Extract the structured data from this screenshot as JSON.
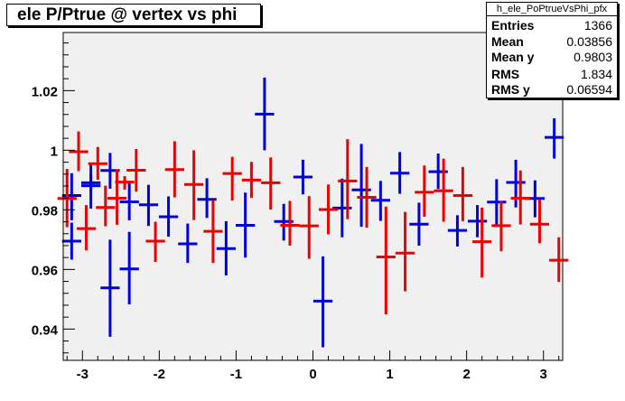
{
  "title": "ele P/Ptrue @ vertex vs phi",
  "stats": {
    "name": "h_ele_PoPtrueVsPhi_pfx",
    "rows": [
      {
        "key": "Entries",
        "value": "1366"
      },
      {
        "key": "Mean",
        "value": "0.03856"
      },
      {
        "key": "Mean y",
        "value": "0.9803"
      },
      {
        "key": "RMS",
        "value": "1.834"
      },
      {
        "key": "RMS y",
        "value": "0.06594"
      }
    ]
  },
  "colors": {
    "frame_bg": "#f0f0f0",
    "blue": "#0000dd",
    "red": "#ee0000",
    "axis": "#000000"
  },
  "chart_data": {
    "type": "scatter",
    "xlim": [
      -3.25,
      3.25
    ],
    "ylim": [
      0.9295,
      1.0395
    ],
    "xticks": [
      -3,
      -2,
      -1,
      0,
      1,
      2,
      3
    ],
    "xtick_labels": [
      "-3",
      "-2",
      "-1",
      "0",
      "1",
      "2",
      "3"
    ],
    "yticks": [
      0.94,
      0.96,
      0.98,
      1.0,
      1.02
    ],
    "ytick_labels": [
      "0.94",
      "0.96",
      "0.98",
      "1",
      "1.02"
    ],
    "xlabel": "",
    "ylabel": "",
    "grid": false,
    "series": [
      {
        "color": "#0000dd",
        "points": [
          {
            "x": -3.14,
            "y": 0.9848,
            "ylo": 0.9765,
            "yhi": 0.9923
          },
          {
            "x": -2.89,
            "y": 0.9881,
            "ylo": 0.9804,
            "yhi": 0.9951
          },
          {
            "x": -2.64,
            "y": 0.9932,
            "ylo": 0.9871,
            "yhi": 0.9991
          },
          {
            "x": -2.39,
            "y": 0.9602,
            "ylo": 0.9483,
            "yhi": 0.9726
          },
          {
            "x": -2.14,
            "y": 0.9817,
            "ylo": 0.9746,
            "yhi": 0.9884
          },
          {
            "x": -1.88,
            "y": 0.9777,
            "ylo": 0.971,
            "yhi": 0.9845
          },
          {
            "x": -1.63,
            "y": 0.9686,
            "ylo": 0.9622,
            "yhi": 0.9754
          },
          {
            "x": -1.38,
            "y": 0.9835,
            "ylo": 0.9773,
            "yhi": 0.9906
          },
          {
            "x": -1.13,
            "y": 0.967,
            "ylo": 0.958,
            "yhi": 0.9762
          },
          {
            "x": -0.88,
            "y": 0.9748,
            "ylo": 0.964,
            "yhi": 0.9858
          },
          {
            "x": -0.63,
            "y": 1.0121,
            "ylo": 1.0,
            "yhi": 1.0244
          },
          {
            "x": -0.38,
            "y": 0.9761,
            "ylo": 0.9697,
            "yhi": 0.982
          },
          {
            "x": -0.13,
            "y": 0.991,
            "ylo": 0.9852,
            "yhi": 0.9968
          },
          {
            "x": 0.13,
            "y": 0.9494,
            "ylo": 0.9339,
            "yhi": 0.9644
          },
          {
            "x": 0.38,
            "y": 0.9806,
            "ylo": 0.9708,
            "yhi": 0.9905
          },
          {
            "x": 0.63,
            "y": 0.9867,
            "ylo": 0.9743,
            "yhi": 1.0021
          },
          {
            "x": 0.88,
            "y": 0.9832,
            "ylo": 0.9763,
            "yhi": 0.9897
          },
          {
            "x": 1.13,
            "y": 0.9923,
            "ylo": 0.9854,
            "yhi": 0.9994
          },
          {
            "x": 1.38,
            "y": 0.9752,
            "ylo": 0.968,
            "yhi": 0.9824
          },
          {
            "x": 1.63,
            "y": 0.9928,
            "ylo": 0.987,
            "yhi": 0.9989
          },
          {
            "x": 1.88,
            "y": 0.9731,
            "ylo": 0.9677,
            "yhi": 0.9782
          },
          {
            "x": 2.14,
            "y": 0.9762,
            "ylo": 0.9708,
            "yhi": 0.9816
          },
          {
            "x": 2.39,
            "y": 0.9826,
            "ylo": 0.9749,
            "yhi": 0.9903
          },
          {
            "x": 2.64,
            "y": 0.9892,
            "ylo": 0.9808,
            "yhi": 0.9968
          },
          {
            "x": 2.89,
            "y": 0.9838,
            "ylo": 0.9775,
            "yhi": 0.9899
          },
          {
            "x": 3.14,
            "y": 1.0043,
            "ylo": 0.9972,
            "yhi": 1.0107
          },
          {
            "x": -3.14,
            "y": 0.9695,
            "ylo": 0.9633,
            "yhi": 0.9757
          },
          {
            "x": -2.89,
            "y": 0.9891,
            "ylo": 0.9868,
            "yhi": 0.9916
          },
          {
            "x": -2.64,
            "y": 0.9538,
            "ylo": 0.9374,
            "yhi": 0.97
          },
          {
            "x": -2.39,
            "y": 0.9827,
            "ylo": 0.9765,
            "yhi": 0.9897
          }
        ]
      },
      {
        "color": "#ee0000",
        "points": [
          {
            "x": -3.05,
            "y": 0.9995,
            "ylo": 0.993,
            "yhi": 1.0063
          },
          {
            "x": -2.8,
            "y": 0.9955,
            "ylo": 0.9901,
            "yhi": 1.0011
          },
          {
            "x": -2.55,
            "y": 0.9839,
            "ylo": 0.975,
            "yhi": 0.9936
          },
          {
            "x": -2.3,
            "y": 0.9933,
            "ylo": 0.9861,
            "yhi": 1.0004
          },
          {
            "x": -2.05,
            "y": 0.9695,
            "ylo": 0.9625,
            "yhi": 0.976
          },
          {
            "x": -1.8,
            "y": 0.9935,
            "ylo": 0.9842,
            "yhi": 1.003
          },
          {
            "x": -1.55,
            "y": 0.9885,
            "ylo": 0.9766,
            "yhi": 1.0
          },
          {
            "x": -1.3,
            "y": 0.9728,
            "ylo": 0.9622,
            "yhi": 0.9832
          },
          {
            "x": -1.05,
            "y": 0.9922,
            "ylo": 0.9831,
            "yhi": 0.9978
          },
          {
            "x": -0.8,
            "y": 0.99,
            "ylo": 0.984,
            "yhi": 0.9961
          },
          {
            "x": -0.55,
            "y": 0.9891,
            "ylo": 0.9801,
            "yhi": 0.9976
          },
          {
            "x": -0.3,
            "y": 0.9748,
            "ylo": 0.968,
            "yhi": 0.983
          },
          {
            "x": -0.05,
            "y": 0.9746,
            "ylo": 0.9636,
            "yhi": 0.9846
          },
          {
            "x": 0.2,
            "y": 0.9801,
            "ylo": 0.9718,
            "yhi": 0.9885
          },
          {
            "x": 0.45,
            "y": 0.9897,
            "ylo": 0.9769,
            "yhi": 1.0037
          },
          {
            "x": 0.7,
            "y": 0.9842,
            "ylo": 0.974,
            "yhi": 0.9944
          },
          {
            "x": 0.95,
            "y": 0.9642,
            "ylo": 0.9449,
            "yhi": 0.9811
          },
          {
            "x": 1.2,
            "y": 0.9655,
            "ylo": 0.9527,
            "yhi": 0.9793
          },
          {
            "x": 1.45,
            "y": 0.9859,
            "ylo": 0.9777,
            "yhi": 0.9949
          },
          {
            "x": 1.7,
            "y": 0.9864,
            "ylo": 0.976,
            "yhi": 0.9972
          },
          {
            "x": 1.95,
            "y": 0.9848,
            "ylo": 0.9762,
            "yhi": 0.9944
          },
          {
            "x": 2.2,
            "y": 0.9693,
            "ylo": 0.9573,
            "yhi": 0.9807
          },
          {
            "x": 2.45,
            "y": 0.9747,
            "ylo": 0.9661,
            "yhi": 0.983
          },
          {
            "x": 2.7,
            "y": 0.9839,
            "ylo": 0.9751,
            "yhi": 0.9932
          },
          {
            "x": 2.95,
            "y": 0.9752,
            "ylo": 0.9688,
            "yhi": 0.9835
          },
          {
            "x": 3.2,
            "y": 0.9631,
            "ylo": 0.9558,
            "yhi": 0.9708
          },
          {
            "x": -3.2,
            "y": 0.9838,
            "ylo": 0.9742,
            "yhi": 0.9937
          },
          {
            "x": -2.95,
            "y": 0.9737,
            "ylo": 0.9664,
            "yhi": 0.9816
          },
          {
            "x": -2.7,
            "y": 0.9808,
            "ylo": 0.9745,
            "yhi": 0.9881
          },
          {
            "x": -2.45,
            "y": 0.9893,
            "ylo": 0.9868,
            "yhi": 0.9913
          }
        ]
      }
    ]
  }
}
